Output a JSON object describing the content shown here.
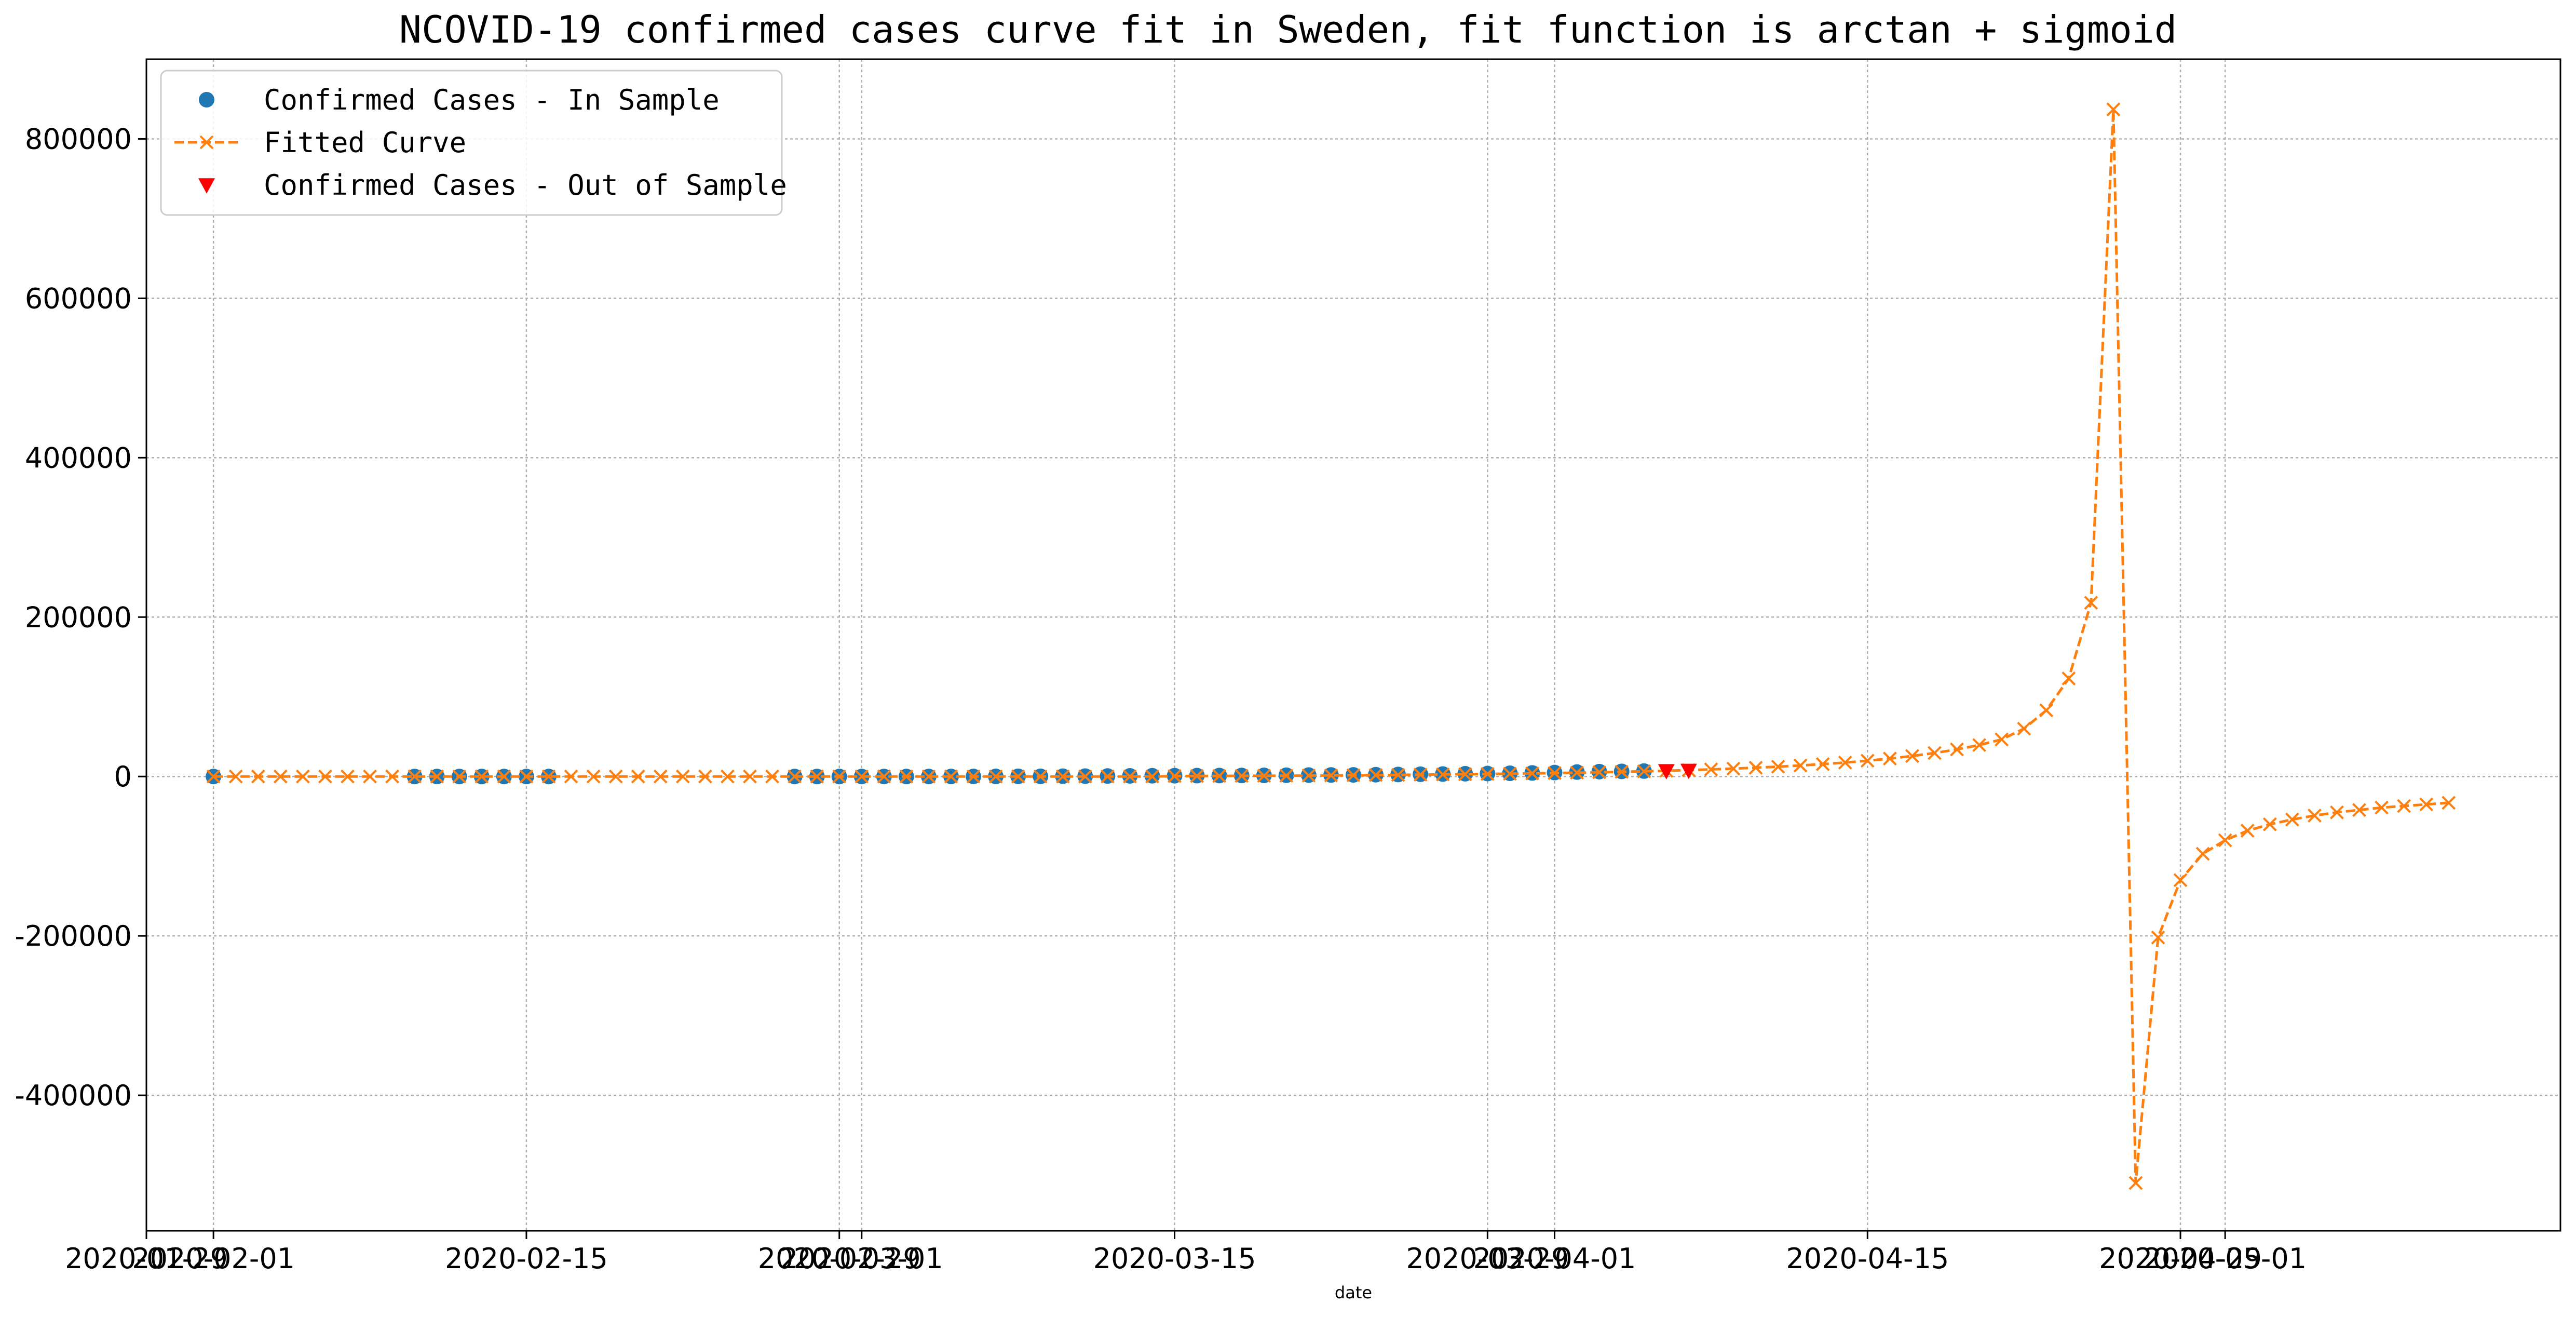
{
  "chart_data": {
    "type": "line",
    "title": "NCOVID-19 confirmed cases curve fit in Sweden, fit function is arctan + sigmoid",
    "xlabel": "date",
    "ylabel": "",
    "grid": true,
    "legend_position": "top-left",
    "xlim": [
      "2020-01-29",
      "2020-05-16"
    ],
    "ylim": [
      -570000,
      900000
    ],
    "x_ticks": [
      "2020-01-29",
      "2020-02-01",
      "2020-02-15",
      "2020-02-29",
      "2020-03-01",
      "2020-03-15",
      "2020-03-29",
      "2020-04-01",
      "2020-04-15",
      "2020-04-29",
      "2020-05-01"
    ],
    "x_tick_labels": [
      "2020-01-29",
      "2020-02-01",
      "2020-02-15",
      "2020-02-29",
      "2020-03-01",
      "2020-03-15",
      "2020-03-29",
      "2020-04-01",
      "2020-04-15",
      "2020-04-29",
      "2020-05-01"
    ],
    "y_ticks": [
      -400000,
      -200000,
      0,
      200000,
      400000,
      600000,
      800000
    ],
    "y_tick_labels": [
      "-400000",
      "-200000",
      "0",
      "200000",
      "400000",
      "600000",
      "800000"
    ],
    "series": [
      {
        "name": "Confirmed Cases - In Sample",
        "style": "marker-circle",
        "color": "#1f77b4",
        "points": [
          [
            "2020-02-01",
            1
          ],
          [
            "2020-02-10",
            1
          ],
          [
            "2020-02-11",
            1
          ],
          [
            "2020-02-12",
            1
          ],
          [
            "2020-02-13",
            1
          ],
          [
            "2020-02-14",
            1
          ],
          [
            "2020-02-15",
            1
          ],
          [
            "2020-02-16",
            1
          ],
          [
            "2020-02-27",
            1
          ],
          [
            "2020-02-28",
            1
          ],
          [
            "2020-02-29",
            7
          ],
          [
            "2020-03-01",
            7
          ],
          [
            "2020-03-02",
            14
          ],
          [
            "2020-03-03",
            15
          ],
          [
            "2020-03-04",
            21
          ],
          [
            "2020-03-05",
            60
          ],
          [
            "2020-03-06",
            101
          ],
          [
            "2020-03-07",
            161
          ],
          [
            "2020-03-08",
            203
          ],
          [
            "2020-03-09",
            248
          ],
          [
            "2020-03-10",
            355
          ],
          [
            "2020-03-11",
            500
          ],
          [
            "2020-03-12",
            599
          ],
          [
            "2020-03-13",
            814
          ],
          [
            "2020-03-14",
            961
          ],
          [
            "2020-03-15",
            1022
          ],
          [
            "2020-03-16",
            1103
          ],
          [
            "2020-03-17",
            1190
          ],
          [
            "2020-03-18",
            1279
          ],
          [
            "2020-03-19",
            1439
          ],
          [
            "2020-03-20",
            1639
          ],
          [
            "2020-03-21",
            1763
          ],
          [
            "2020-03-22",
            1934
          ],
          [
            "2020-03-23",
            2046
          ],
          [
            "2020-03-24",
            2286
          ],
          [
            "2020-03-25",
            2526
          ],
          [
            "2020-03-26",
            2840
          ],
          [
            "2020-03-27",
            3069
          ],
          [
            "2020-03-28",
            3447
          ],
          [
            "2020-03-29",
            3700
          ],
          [
            "2020-03-30",
            4028
          ],
          [
            "2020-03-31",
            4435
          ],
          [
            "2020-04-01",
            4947
          ],
          [
            "2020-04-02",
            5568
          ],
          [
            "2020-04-03",
            6131
          ],
          [
            "2020-04-04",
            6443
          ],
          [
            "2020-04-05",
            6830
          ]
        ]
      },
      {
        "name": "Fitted Curve",
        "style": "dashed-line-x",
        "color": "#ff7f0e",
        "points": [
          [
            "2020-02-01",
            0
          ],
          [
            "2020-02-02",
            0
          ],
          [
            "2020-02-03",
            0
          ],
          [
            "2020-02-04",
            0
          ],
          [
            "2020-02-05",
            0
          ],
          [
            "2020-02-06",
            0
          ],
          [
            "2020-02-07",
            0
          ],
          [
            "2020-02-08",
            0
          ],
          [
            "2020-02-09",
            0
          ],
          [
            "2020-02-10",
            0
          ],
          [
            "2020-02-11",
            0
          ],
          [
            "2020-02-12",
            0
          ],
          [
            "2020-02-13",
            0
          ],
          [
            "2020-02-14",
            0
          ],
          [
            "2020-02-15",
            0
          ],
          [
            "2020-02-16",
            0
          ],
          [
            "2020-02-17",
            0
          ],
          [
            "2020-02-18",
            0
          ],
          [
            "2020-02-19",
            0
          ],
          [
            "2020-02-20",
            0
          ],
          [
            "2020-02-21",
            0
          ],
          [
            "2020-02-22",
            0
          ],
          [
            "2020-02-23",
            0
          ],
          [
            "2020-02-24",
            0
          ],
          [
            "2020-02-25",
            0
          ],
          [
            "2020-02-26",
            0
          ],
          [
            "2020-02-27",
            0
          ],
          [
            "2020-02-28",
            0
          ],
          [
            "2020-02-29",
            0
          ],
          [
            "2020-03-01",
            0
          ],
          [
            "2020-03-02",
            0
          ],
          [
            "2020-03-03",
            0
          ],
          [
            "2020-03-04",
            0
          ],
          [
            "2020-03-05",
            0
          ],
          [
            "2020-03-06",
            0
          ],
          [
            "2020-03-07",
            0
          ],
          [
            "2020-03-08",
            0
          ],
          [
            "2020-03-09",
            0
          ],
          [
            "2020-03-10",
            0
          ],
          [
            "2020-03-11",
            0
          ],
          [
            "2020-03-12",
            0
          ],
          [
            "2020-03-13",
            0
          ],
          [
            "2020-03-14",
            0
          ],
          [
            "2020-03-15",
            500
          ],
          [
            "2020-03-16",
            600
          ],
          [
            "2020-03-17",
            700
          ],
          [
            "2020-03-18",
            800
          ],
          [
            "2020-03-19",
            900
          ],
          [
            "2020-03-20",
            1000
          ],
          [
            "2020-03-21",
            1200
          ],
          [
            "2020-03-22",
            1400
          ],
          [
            "2020-03-23",
            1600
          ],
          [
            "2020-03-24",
            1800
          ],
          [
            "2020-03-25",
            2000
          ],
          [
            "2020-03-26",
            2300
          ],
          [
            "2020-03-27",
            2600
          ],
          [
            "2020-03-28",
            2900
          ],
          [
            "2020-03-29",
            3200
          ],
          [
            "2020-03-30",
            3500
          ],
          [
            "2020-03-31",
            3900
          ],
          [
            "2020-04-01",
            4300
          ],
          [
            "2020-04-02",
            4800
          ],
          [
            "2020-04-03",
            5300
          ],
          [
            "2020-04-04",
            5900
          ],
          [
            "2020-04-05",
            6500
          ],
          [
            "2020-04-06",
            7200
          ],
          [
            "2020-04-07",
            8000
          ],
          [
            "2020-04-08",
            8900
          ],
          [
            "2020-04-09",
            9900
          ],
          [
            "2020-04-10",
            11000
          ],
          [
            "2020-04-11",
            12300
          ],
          [
            "2020-04-12",
            13800
          ],
          [
            "2020-04-13",
            15500
          ],
          [
            "2020-04-14",
            17500
          ],
          [
            "2020-04-15",
            19800
          ],
          [
            "2020-04-16",
            22500
          ],
          [
            "2020-04-17",
            25700
          ],
          [
            "2020-04-18",
            29500
          ],
          [
            "2020-04-19",
            34000
          ],
          [
            "2020-04-20",
            39500
          ],
          [
            "2020-04-21",
            46500
          ],
          [
            "2020-04-22",
            60000
          ],
          [
            "2020-04-23",
            83000
          ],
          [
            "2020-04-24",
            123000
          ],
          [
            "2020-04-25",
            218000
          ],
          [
            "2020-04-26",
            837000
          ],
          [
            "2020-04-27",
            -510000
          ],
          [
            "2020-04-28",
            -202000
          ],
          [
            "2020-04-29",
            -130000
          ],
          [
            "2020-04-30",
            -97000
          ],
          [
            "2020-05-01",
            -80000
          ],
          [
            "2020-05-02",
            -68000
          ],
          [
            "2020-05-03",
            -60000
          ],
          [
            "2020-05-04",
            -54000
          ],
          [
            "2020-05-05",
            -49000
          ],
          [
            "2020-05-06",
            -45000
          ],
          [
            "2020-05-07",
            -42000
          ],
          [
            "2020-05-08",
            -39000
          ],
          [
            "2020-05-09",
            -37000
          ],
          [
            "2020-05-10",
            -35000
          ],
          [
            "2020-05-11",
            -33000
          ]
        ]
      },
      {
        "name": "Confirmed Cases - Out of Sample",
        "style": "marker-triangle-down",
        "color": "#ff0000",
        "points": [
          [
            "2020-04-06",
            7206
          ],
          [
            "2020-04-07",
            7693
          ]
        ]
      }
    ]
  }
}
